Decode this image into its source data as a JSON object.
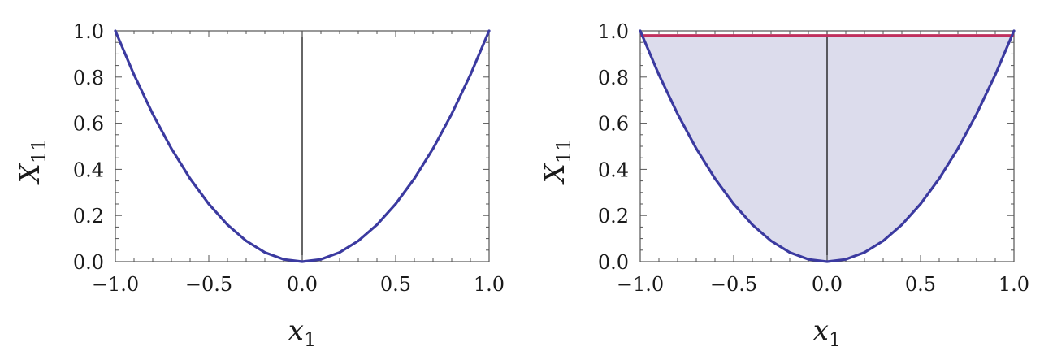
{
  "colors": {
    "curve": "#3b3aa0",
    "fill": "#dcdcec",
    "upper_bound": "#c0305e",
    "frame": "#555555",
    "zero_line": "#000000"
  },
  "chart_data": [
    {
      "type": "line",
      "title": "",
      "xlabel": {
        "symbol": "x",
        "subscript": "1"
      },
      "ylabel": {
        "symbol": "X",
        "subscript": "11"
      },
      "xlim": [
        -1.0,
        1.0
      ],
      "ylim": [
        0.0,
        1.0
      ],
      "xticks": [
        "−1.0",
        "−0.5",
        "0.0",
        "0.5",
        "1.0"
      ],
      "yticks": [
        "0.0",
        "0.2",
        "0.4",
        "0.6",
        "0.8",
        "1.0"
      ],
      "grid": false,
      "shaded_region": false,
      "series": [
        {
          "x": [
            -1.0,
            -0.9,
            -0.8,
            -0.7,
            -0.6,
            -0.5,
            -0.4,
            -0.3,
            -0.2,
            -0.1,
            0.0,
            0.1,
            0.2,
            0.3,
            0.4,
            0.5,
            0.6,
            0.7,
            0.8,
            0.9,
            1.0
          ],
          "y": [
            1.0,
            0.81,
            0.64,
            0.49,
            0.36,
            0.25,
            0.16,
            0.09,
            0.04,
            0.01,
            0.0,
            0.01,
            0.04,
            0.09,
            0.16,
            0.25,
            0.36,
            0.49,
            0.64,
            0.81,
            1.0
          ]
        }
      ]
    },
    {
      "type": "area",
      "title": "",
      "xlabel": {
        "symbol": "x",
        "subscript": "1"
      },
      "ylabel": {
        "symbol": "X",
        "subscript": "11"
      },
      "xlim": [
        -1.0,
        1.0
      ],
      "ylim": [
        0.0,
        1.0
      ],
      "xticks": [
        "−1.0",
        "−0.5",
        "0.0",
        "0.5",
        "1.0"
      ],
      "yticks": [
        "0.0",
        "0.2",
        "0.4",
        "0.6",
        "0.8",
        "1.0"
      ],
      "grid": false,
      "shaded_region": true,
      "series": [
        {
          "x": [
            -1.0,
            -0.9,
            -0.8,
            -0.7,
            -0.6,
            -0.5,
            -0.4,
            -0.3,
            -0.2,
            -0.1,
            0.0,
            0.1,
            0.2,
            0.3,
            0.4,
            0.5,
            0.6,
            0.7,
            0.8,
            0.9,
            1.0
          ],
          "y": [
            1.0,
            0.81,
            0.64,
            0.49,
            0.36,
            0.25,
            0.16,
            0.09,
            0.04,
            0.01,
            0.0,
            0.01,
            0.04,
            0.09,
            0.16,
            0.25,
            0.36,
            0.49,
            0.64,
            0.81,
            1.0
          ]
        },
        {
          "x": [
            -1.0,
            1.0
          ],
          "y": [
            0.98,
            0.98
          ]
        }
      ]
    }
  ]
}
